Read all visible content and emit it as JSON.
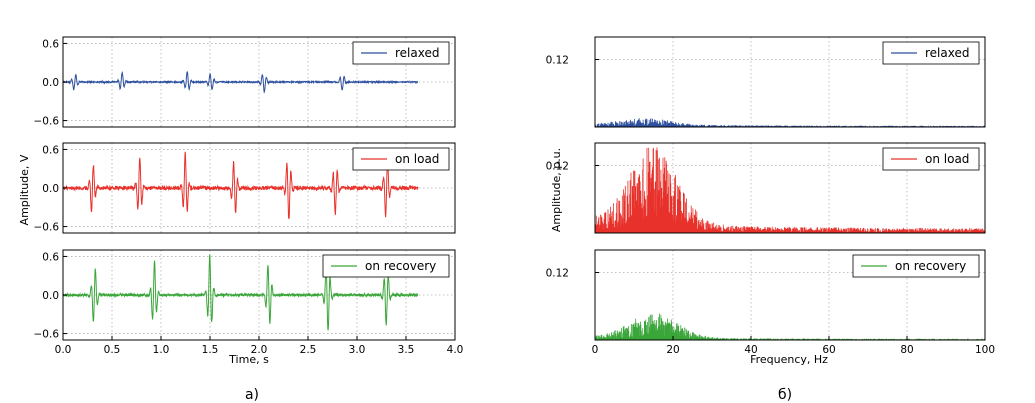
{
  "figure": {
    "left_label": "а)",
    "right_label": "б)"
  },
  "chart_data": [
    {
      "type": "line",
      "panel": "time-domain",
      "xlabel": "Time, s",
      "ylabel": "Amplitude, V",
      "xlim": [
        0,
        4.0
      ],
      "ylim": [
        -0.7,
        0.7
      ],
      "xticks": [
        "0.0",
        "0.5",
        "1.0",
        "1.5",
        "2.0",
        "2.5",
        "3.0",
        "3.5",
        "4.0"
      ],
      "yticks": [
        "0.6",
        "0.0",
        "−0.6"
      ],
      "grid": true,
      "legend_position": "top-right",
      "series": [
        {
          "name": "relaxed",
          "color": "#2c4f9e",
          "beats": [
            0.12,
            0.6,
            1.27,
            1.51,
            2.05,
            2.85
          ],
          "peak": 0.17,
          "noise": 0.01
        },
        {
          "name": "on load",
          "color": "#e8312b",
          "beats": [
            0.3,
            0.78,
            1.25,
            1.75,
            2.3,
            2.78,
            3.3
          ],
          "peak": 0.55,
          "noise": 0.03
        },
        {
          "name": "on recovery",
          "color": "#3aa63a",
          "beats": [
            0.32,
            0.93,
            1.5,
            2.1,
            2.7,
            3.3
          ],
          "peak": 0.62,
          "noise": 0.02
        }
      ]
    },
    {
      "type": "line",
      "panel": "frequency-domain",
      "xlabel": "Frequency, Hz",
      "ylabel": "Amplitude, p.u.",
      "xlim": [
        0,
        100
      ],
      "ylim": [
        0,
        0.16
      ],
      "xticks": [
        "0",
        "20",
        "40",
        "60",
        "80",
        "100"
      ],
      "yticks": [
        "0.12"
      ],
      "grid": true,
      "legend_position": "top-right",
      "series": [
        {
          "name": "relaxed",
          "color": "#2c4f9e",
          "peak_hz": 13,
          "peak_amp": 0.012,
          "floor": 0.002
        },
        {
          "name": "on load",
          "color": "#e8312b",
          "peak_hz": 15,
          "peak_amp": 0.14,
          "floor": 0.008
        },
        {
          "name": "on recovery",
          "color": "#3aa63a",
          "peak_hz": 15,
          "peak_amp": 0.045,
          "floor": 0.002
        }
      ]
    }
  ]
}
